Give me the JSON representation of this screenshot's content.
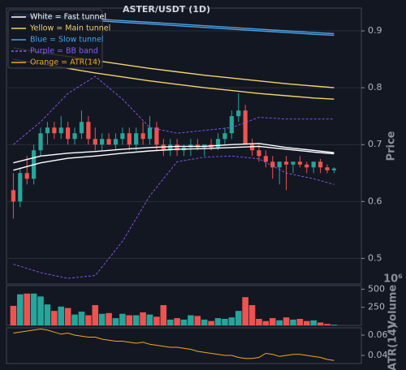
{
  "chart_data": {
    "type": "candlestick",
    "title": "ASTER/USDT (1D)",
    "up_color": "#26a69a",
    "down_color": "#ef5350",
    "xlim": [
      -1,
      51
    ],
    "price": {
      "label": "Price",
      "ylim": [
        0.455,
        0.94
      ],
      "yticks": [
        0.5,
        0.6,
        0.7,
        0.8,
        0.9
      ],
      "grid": true
    },
    "candles": {
      "open": [
        0.62,
        0.6,
        0.65,
        0.64,
        0.69,
        0.72,
        0.73,
        0.72,
        0.73,
        0.71,
        0.72,
        0.74,
        0.71,
        0.7,
        0.71,
        0.7,
        0.71,
        0.72,
        0.7,
        0.72,
        0.71,
        0.73,
        0.7,
        0.69,
        0.7,
        0.69,
        0.695,
        0.7,
        0.695,
        0.7,
        0.695,
        0.71,
        0.72,
        0.75,
        0.76,
        0.7,
        0.69,
        0.68,
        0.67,
        0.66,
        0.67,
        0.665,
        0.67,
        0.665,
        0.66,
        0.67,
        0.66,
        0.655
      ],
      "high": [
        0.65,
        0.66,
        0.68,
        0.7,
        0.73,
        0.74,
        0.74,
        0.75,
        0.74,
        0.73,
        0.76,
        0.75,
        0.73,
        0.72,
        0.72,
        0.72,
        0.73,
        0.73,
        0.73,
        0.74,
        0.75,
        0.74,
        0.71,
        0.71,
        0.71,
        0.7,
        0.71,
        0.71,
        0.7,
        0.71,
        0.72,
        0.73,
        0.76,
        0.79,
        0.77,
        0.71,
        0.7,
        0.69,
        0.68,
        0.67,
        0.68,
        0.67,
        0.68,
        0.67,
        0.67,
        0.675,
        0.665,
        0.66
      ],
      "low": [
        0.57,
        0.59,
        0.63,
        0.63,
        0.68,
        0.7,
        0.71,
        0.71,
        0.7,
        0.7,
        0.71,
        0.7,
        0.69,
        0.69,
        0.7,
        0.69,
        0.7,
        0.69,
        0.69,
        0.7,
        0.7,
        0.69,
        0.68,
        0.68,
        0.68,
        0.68,
        0.68,
        0.69,
        0.68,
        0.69,
        0.69,
        0.7,
        0.71,
        0.74,
        0.7,
        0.68,
        0.67,
        0.66,
        0.64,
        0.63,
        0.62,
        0.65,
        0.66,
        0.65,
        0.65,
        0.65,
        0.65,
        0.65
      ],
      "close": [
        0.6,
        0.65,
        0.64,
        0.69,
        0.72,
        0.73,
        0.72,
        0.73,
        0.71,
        0.72,
        0.74,
        0.71,
        0.7,
        0.71,
        0.7,
        0.71,
        0.72,
        0.7,
        0.72,
        0.71,
        0.73,
        0.7,
        0.69,
        0.7,
        0.69,
        0.695,
        0.7,
        0.695,
        0.7,
        0.695,
        0.71,
        0.72,
        0.75,
        0.76,
        0.7,
        0.69,
        0.68,
        0.67,
        0.66,
        0.67,
        0.665,
        0.67,
        0.665,
        0.66,
        0.67,
        0.66,
        0.655,
        0.658
      ]
    },
    "line_x": [
      0,
      4,
      8,
      12,
      16,
      20,
      24,
      28,
      32,
      36,
      40,
      44,
      47
    ],
    "series": [
      {
        "name": "White = Fast tunnel",
        "color": "#ffffff",
        "dashed": false,
        "values": [
          [
            0.668,
            0.68,
            0.685,
            0.688,
            0.692,
            0.695,
            0.697,
            0.697,
            0.7,
            0.702,
            0.695,
            0.69,
            0.686
          ],
          [
            0.655,
            0.668,
            0.676,
            0.68,
            0.685,
            0.689,
            0.692,
            0.693,
            0.695,
            0.697,
            0.692,
            0.687,
            0.684
          ]
        ]
      },
      {
        "name": "Yellow = Main tunnel",
        "color": "#f5d36b",
        "dashed": false,
        "values": [
          [
            0.87,
            0.862,
            0.855,
            0.848,
            0.841,
            0.834,
            0.828,
            0.822,
            0.817,
            0.812,
            0.807,
            0.803,
            0.8
          ],
          [
            0.85,
            0.842,
            0.834,
            0.826,
            0.819,
            0.812,
            0.806,
            0.8,
            0.795,
            0.79,
            0.786,
            0.782,
            0.78
          ]
        ]
      },
      {
        "name": "Blue = Slow tunnel",
        "color": "#4aa3e8",
        "dashed": false,
        "values": [
          [
            0.93,
            0.927,
            0.924,
            0.921,
            0.918,
            0.915,
            0.912,
            0.909,
            0.906,
            0.903,
            0.9,
            0.897,
            0.895
          ],
          [
            0.927,
            0.924,
            0.921,
            0.918,
            0.915,
            0.912,
            0.909,
            0.906,
            0.903,
            0.9,
            0.897,
            0.894,
            0.892
          ]
        ]
      },
      {
        "name": "Purple = BB band",
        "color": "#8a5cf6",
        "dashed": true,
        "values": [
          [
            0.7,
            0.74,
            0.79,
            0.82,
            0.78,
            0.73,
            0.72,
            0.725,
            0.73,
            0.748,
            0.745,
            0.745,
            0.745
          ],
          [
            0.49,
            0.475,
            0.465,
            0.47,
            0.53,
            0.61,
            0.67,
            0.678,
            0.68,
            0.675,
            0.65,
            0.64,
            0.63
          ]
        ]
      }
    ],
    "volume": {
      "label": "Volume",
      "offset_label": "10⁶",
      "ylim": [
        0,
        550
      ],
      "yticks": [
        250,
        500
      ],
      "values": [
        270,
        430,
        440,
        440,
        400,
        290,
        200,
        260,
        240,
        150,
        190,
        140,
        280,
        160,
        170,
        100,
        160,
        140,
        140,
        180,
        150,
        120,
        280,
        80,
        100,
        80,
        140,
        130,
        80,
        60,
        100,
        90,
        110,
        200,
        390,
        280,
        90,
        60,
        100,
        70,
        110,
        80,
        90,
        60,
        70,
        40,
        20,
        10
      ]
    },
    "atr": {
      "name": "Orange = ATR(14)",
      "label": "ATR(14)",
      "color": "#f5a623",
      "ylim": [
        0.032,
        0.0672
      ],
      "yticks": [
        0.04,
        0.06
      ],
      "values": [
        0.062,
        0.063,
        0.064,
        0.065,
        0.066,
        0.065,
        0.063,
        0.061,
        0.062,
        0.06,
        0.059,
        0.058,
        0.058,
        0.056,
        0.055,
        0.054,
        0.054,
        0.053,
        0.052,
        0.053,
        0.051,
        0.05,
        0.049,
        0.048,
        0.048,
        0.047,
        0.046,
        0.044,
        0.043,
        0.042,
        0.041,
        0.04,
        0.04,
        0.038,
        0.037,
        0.037,
        0.038,
        0.042,
        0.041,
        0.039,
        0.04,
        0.041,
        0.041,
        0.04,
        0.039,
        0.038,
        0.036,
        0.035
      ]
    }
  }
}
